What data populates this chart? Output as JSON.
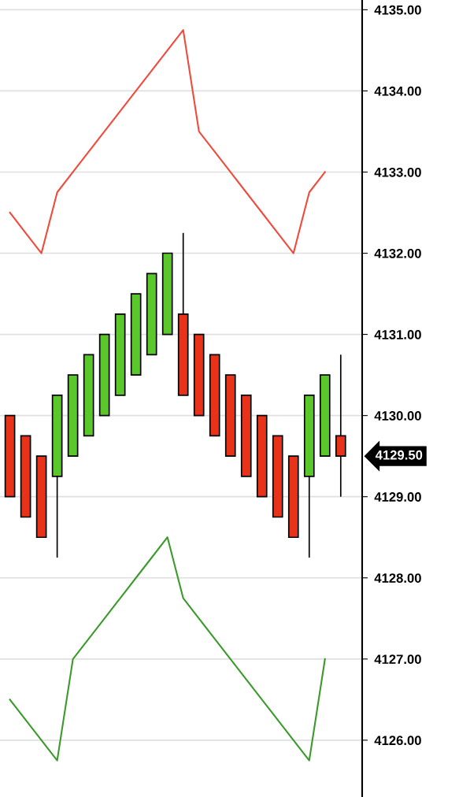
{
  "chart_data": {
    "type": "candlestick",
    "categories": [
      null,
      null,
      null,
      null,
      null,
      null,
      null,
      null,
      null,
      null,
      null,
      null,
      null,
      null,
      null,
      null,
      null,
      null,
      null,
      null,
      null,
      null
    ],
    "ohlc": [
      [
        4130,
        4130,
        4129,
        4129
      ],
      [
        4129.75,
        4129.75,
        4128.75,
        4128.75
      ],
      [
        4129.5,
        4129.5,
        4128.5,
        4128.5
      ],
      [
        4129.25,
        4130.25,
        4128.25,
        4130.25
      ],
      [
        4129.5,
        4130.5,
        4129.5,
        4130.5
      ],
      [
        4129.75,
        4130.75,
        4129.75,
        4130.75
      ],
      [
        4130,
        4131,
        4130,
        4131
      ],
      [
        4130.25,
        4131.25,
        4130.25,
        4131.25
      ],
      [
        4130.5,
        4131.5,
        4130.5,
        4131.5
      ],
      [
        4130.75,
        4131.75,
        4130.75,
        4131.75
      ],
      [
        4131,
        4132,
        4131,
        4132
      ],
      [
        4131.25,
        4132.25,
        4130.25,
        4130.25
      ],
      [
        4131,
        4131,
        4130,
        4130
      ],
      [
        4130.75,
        4130.75,
        4129.75,
        4129.75
      ],
      [
        4130.5,
        4130.5,
        4129.5,
        4129.5
      ],
      [
        4130.25,
        4130.25,
        4129.25,
        4129.25
      ],
      [
        4130,
        4130,
        4129,
        4129
      ],
      [
        4129.75,
        4129.75,
        4128.75,
        4128.75
      ],
      [
        4129.5,
        4129.5,
        4128.5,
        4128.5
      ],
      [
        4129.25,
        4130.25,
        4128.25,
        4130.25
      ],
      [
        4129.5,
        4130.5,
        4129.5,
        4130.5
      ],
      [
        4129.75,
        4130.75,
        4129,
        4129.5
      ]
    ],
    "colors": [
      "#e8321a",
      "#e8321a",
      "#e8321a",
      "#5ac82a",
      "#5ac82a",
      "#5ac82a",
      "#5ac82a",
      "#5ac82a",
      "#5ac82a",
      "#5ac82a",
      "#5ac82a",
      "#e8321a",
      "#e8321a",
      "#e8321a",
      "#e8321a",
      "#e8321a",
      "#e8321a",
      "#e8321a",
      "#e8321a",
      "#5ac82a",
      "#5ac82a",
      "#e8321a"
    ],
    "series": [
      {
        "type": "line",
        "color": "#f04a3a",
        "values": [
          4132.5,
          4132.25,
          4132,
          4132.75,
          4133,
          4133.25,
          4133.5,
          4133.75,
          4134,
          4134.25,
          4134.5,
          4134.75,
          4133.5,
          4133.25,
          4133,
          4132.75,
          4132.5,
          4132.25,
          4132,
          4132.75,
          4133,
          null
        ]
      },
      {
        "type": "line",
        "color": "#3a9a2a",
        "values": [
          4126.5,
          4126.25,
          4126,
          4125.75,
          4127,
          4127.25,
          4127.5,
          4127.75,
          4128,
          4128.25,
          4128.5,
          4127.75,
          4127.5,
          4127.25,
          4127,
          4126.75,
          4126.5,
          4126.25,
          4126,
          4125.75,
          4127,
          null
        ]
      }
    ],
    "ylim": [
      4125.3,
      4135.12
    ],
    "yticks": [
      {
        "value": 4126,
        "label": "4126.00"
      },
      {
        "value": 4127,
        "label": "4127.00"
      },
      {
        "value": 4128,
        "label": "4128.00"
      },
      {
        "value": 4129,
        "label": "4129.00"
      },
      {
        "value": 4130,
        "label": "4130.00"
      },
      {
        "value": 4131,
        "label": "4131.00"
      },
      {
        "value": 4132,
        "label": "4132.00"
      },
      {
        "value": 4133,
        "label": "4133.00"
      },
      {
        "value": 4134,
        "label": "4134.00"
      },
      {
        "value": 4135,
        "label": "4135.00"
      }
    ],
    "annotations": [
      "4129.50"
    ],
    "grid": "y",
    "marker": "none",
    "line_style": "solid"
  }
}
